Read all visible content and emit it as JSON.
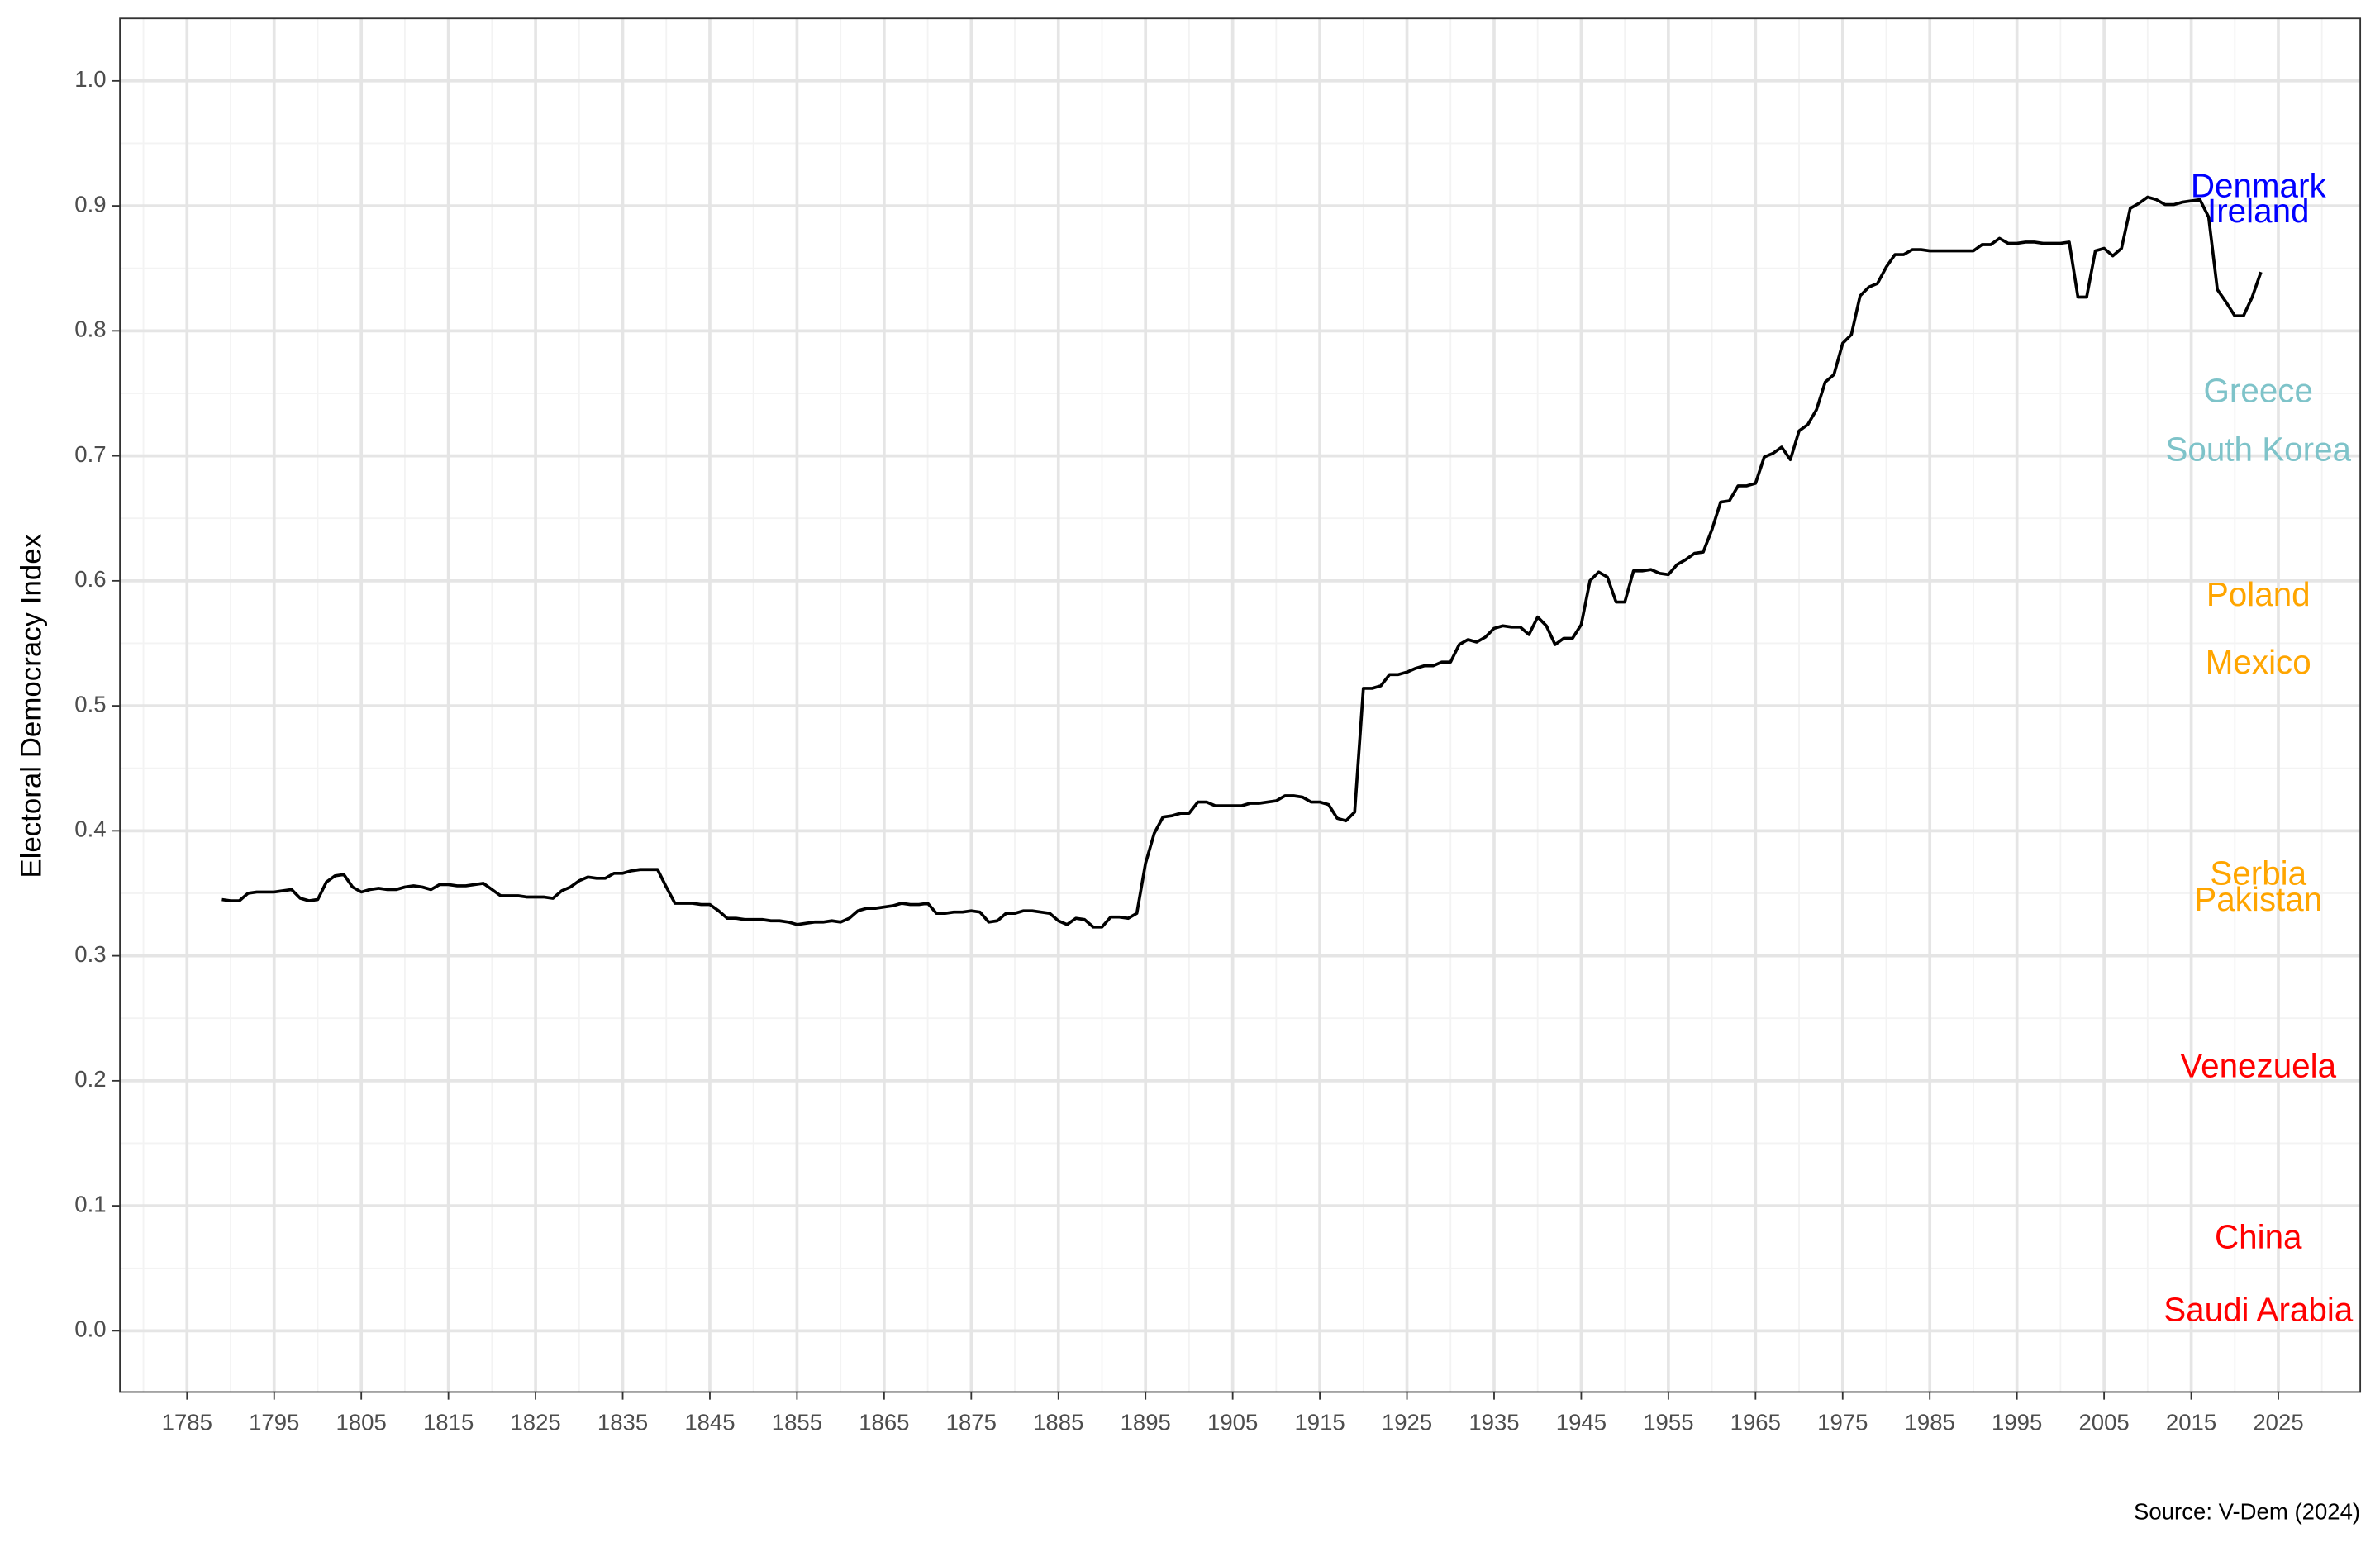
{
  "chart_data": {
    "type": "line",
    "y_label": "Electoral Democracy Index",
    "caption": "Source: V-Dem (2024)",
    "color": "#000000",
    "grid": true,
    "xlim": [
      1777.3,
      2034.4
    ],
    "ylim": [
      -0.049,
      1.05
    ],
    "xticks": [
      1785,
      1795,
      1805,
      1815,
      1825,
      1835,
      1845,
      1855,
      1865,
      1875,
      1885,
      1895,
      1905,
      1915,
      1925,
      1935,
      1945,
      1955,
      1965,
      1975,
      1985,
      1995,
      2005,
      2015,
      2025
    ],
    "x_minor_grid": [
      1780,
      1790,
      1800,
      1810,
      1820,
      1830,
      1840,
      1850,
      1860,
      1870,
      1880,
      1890,
      1900,
      1910,
      1920,
      1930,
      1940,
      1950,
      1960,
      1970,
      1980,
      1990,
      2000,
      2010,
      2020,
      2030
    ],
    "yticks": [
      {
        "value": 0,
        "label": "0.0"
      },
      0.1,
      0.2,
      0.3,
      0.4,
      0.5,
      0.6,
      0.7,
      0.8,
      0.9,
      {
        "value": 1,
        "label": "1.0"
      }
    ],
    "y_minor_grid": [
      0.05,
      0.15,
      0.25,
      0.35,
      0.45,
      0.55,
      0.65,
      0.75,
      0.85,
      0.95
    ],
    "x": [
      1789,
      1790,
      1791,
      1792,
      1793,
      1794,
      1795,
      1796,
      1797,
      1798,
      1799,
      1800,
      1801,
      1802,
      1803,
      1804,
      1805,
      1806,
      1807,
      1808,
      1809,
      1810,
      1811,
      1812,
      1813,
      1814,
      1815,
      1816,
      1817,
      1818,
      1819,
      1820,
      1821,
      1822,
      1823,
      1824,
      1825,
      1826,
      1827,
      1828,
      1829,
      1830,
      1831,
      1832,
      1833,
      1834,
      1835,
      1836,
      1837,
      1838,
      1839,
      1840,
      1841,
      1842,
      1843,
      1844,
      1845,
      1846,
      1847,
      1848,
      1849,
      1850,
      1851,
      1852,
      1853,
      1854,
      1855,
      1856,
      1857,
      1858,
      1859,
      1860,
      1861,
      1862,
      1863,
      1864,
      1865,
      1866,
      1867,
      1868,
      1869,
      1870,
      1871,
      1872,
      1873,
      1874,
      1875,
      1876,
      1877,
      1878,
      1879,
      1880,
      1881,
      1882,
      1883,
      1884,
      1885,
      1886,
      1887,
      1888,
      1889,
      1890,
      1891,
      1892,
      1893,
      1894,
      1895,
      1896,
      1897,
      1898,
      1899,
      1900,
      1901,
      1902,
      1903,
      1904,
      1905,
      1906,
      1907,
      1908,
      1909,
      1910,
      1911,
      1912,
      1913,
      1914,
      1915,
      1916,
      1917,
      1918,
      1919,
      1920,
      1921,
      1922,
      1923,
      1924,
      1925,
      1926,
      1927,
      1928,
      1929,
      1930,
      1931,
      1932,
      1933,
      1934,
      1935,
      1936,
      1937,
      1938,
      1939,
      1940,
      1941,
      1942,
      1943,
      1944,
      1945,
      1946,
      1947,
      1948,
      1949,
      1950,
      1951,
      1952,
      1953,
      1954,
      1955,
      1956,
      1957,
      1958,
      1959,
      1960,
      1961,
      1962,
      1963,
      1964,
      1965,
      1966,
      1967,
      1968,
      1969,
      1970,
      1971,
      1972,
      1973,
      1974,
      1975,
      1976,
      1977,
      1978,
      1979,
      1980,
      1981,
      1982,
      1983,
      1984,
      1985,
      1986,
      1987,
      1988,
      1989,
      1990,
      1991,
      1992,
      1993,
      1994,
      1995,
      1996,
      1997,
      1998,
      1999,
      2000,
      2001,
      2002,
      2003,
      2004,
      2005,
      2006,
      2007,
      2008,
      2009,
      2010,
      2011,
      2012,
      2013,
      2014,
      2015,
      2016,
      2017,
      2018,
      2019,
      2020,
      2021,
      2022,
      2023
    ],
    "values": [
      0.345,
      0.344,
      0.344,
      0.35,
      0.351,
      0.351,
      0.351,
      0.352,
      0.353,
      0.346,
      0.344,
      0.345,
      0.359,
      0.364,
      0.365,
      0.355,
      0.351,
      0.353,
      0.354,
      0.353,
      0.353,
      0.355,
      0.356,
      0.355,
      0.353,
      0.357,
      0.357,
      0.356,
      0.356,
      0.357,
      0.358,
      0.353,
      0.348,
      0.348,
      0.348,
      0.347,
      0.347,
      0.347,
      0.346,
      0.352,
      0.355,
      0.36,
      0.363,
      0.362,
      0.362,
      0.366,
      0.366,
      0.368,
      0.369,
      0.369,
      0.369,
      0.355,
      0.342,
      0.342,
      0.342,
      0.341,
      0.341,
      0.336,
      0.33,
      0.33,
      0.329,
      0.329,
      0.329,
      0.328,
      0.328,
      0.327,
      0.325,
      0.326,
      0.327,
      0.327,
      0.328,
      0.327,
      0.33,
      0.336,
      0.338,
      0.338,
      0.339,
      0.34,
      0.342,
      0.341,
      0.341,
      0.342,
      0.334,
      0.334,
      0.335,
      0.335,
      0.336,
      0.335,
      0.327,
      0.328,
      0.334,
      0.334,
      0.336,
      0.336,
      0.335,
      0.334,
      0.328,
      0.325,
      0.33,
      0.329,
      0.323,
      0.323,
      0.331,
      0.331,
      0.33,
      0.334,
      0.374,
      0.398,
      0.411,
      0.412,
      0.414,
      0.414,
      0.423,
      0.423,
      0.42,
      0.42,
      0.42,
      0.42,
      0.422,
      0.422,
      0.423,
      0.424,
      0.428,
      0.428,
      0.427,
      0.423,
      0.423,
      0.421,
      0.41,
      0.408,
      0.415,
      0.514,
      0.514,
      0.516,
      0.525,
      0.525,
      0.527,
      0.53,
      0.532,
      0.532,
      0.535,
      0.535,
      0.549,
      0.553,
      0.551,
      0.555,
      0.562,
      0.564,
      0.563,
      0.563,
      0.557,
      0.571,
      0.564,
      0.549,
      0.554,
      0.554,
      0.565,
      0.6,
      0.607,
      0.603,
      0.583,
      0.583,
      0.608,
      0.608,
      0.609,
      0.606,
      0.605,
      0.613,
      0.617,
      0.622,
      0.623,
      0.641,
      0.663,
      0.664,
      0.676,
      0.676,
      0.678,
      0.699,
      0.702,
      0.707,
      0.697,
      0.72,
      0.725,
      0.737,
      0.759,
      0.765,
      0.79,
      0.797,
      0.828,
      0.835,
      0.838,
      0.851,
      0.861,
      0.861,
      0.865,
      0.865,
      0.864,
      0.864,
      0.864,
      0.864,
      0.864,
      0.864,
      0.869,
      0.869,
      0.874,
      0.87,
      0.87,
      0.871,
      0.871,
      0.87,
      0.87,
      0.87,
      0.871,
      0.827,
      0.827,
      0.864,
      0.866,
      0.86,
      0.866,
      0.898,
      0.902,
      0.907,
      0.905,
      0.901,
      0.901,
      0.903,
      0.904,
      0.905,
      0.891,
      0.833,
      0.823,
      0.812,
      0.812,
      0.827,
      0.847
    ],
    "annotations": [
      {
        "text": "Denmark",
        "x": 2022.7,
        "y": 0.914,
        "color": "#0000ff"
      },
      {
        "text": "Ireland",
        "x": 2022.7,
        "y": 0.894,
        "color": "#0000ff"
      },
      {
        "text": "Greece",
        "x": 2022.7,
        "y": 0.75,
        "color": "#7ec3c9"
      },
      {
        "text": "South Korea",
        "x": 2022.7,
        "y": 0.703,
        "color": "#7ec3c9"
      },
      {
        "text": "Poland",
        "x": 2022.7,
        "y": 0.587,
        "color": "#ffa500"
      },
      {
        "text": "Mexico",
        "x": 2022.7,
        "y": 0.533,
        "color": "#ffa500"
      },
      {
        "text": "Serbia",
        "x": 2022.7,
        "y": 0.364,
        "color": "#ffa500"
      },
      {
        "text": "Pakistan",
        "x": 2022.7,
        "y": 0.343,
        "color": "#ffa500"
      },
      {
        "text": "Venezuela",
        "x": 2022.7,
        "y": 0.21,
        "color": "#ff0000"
      },
      {
        "text": "China",
        "x": 2022.7,
        "y": 0.073,
        "color": "#ff0000"
      },
      {
        "text": "Saudi Arabia",
        "x": 2022.7,
        "y": 0.015,
        "color": "#ff0000"
      }
    ]
  }
}
